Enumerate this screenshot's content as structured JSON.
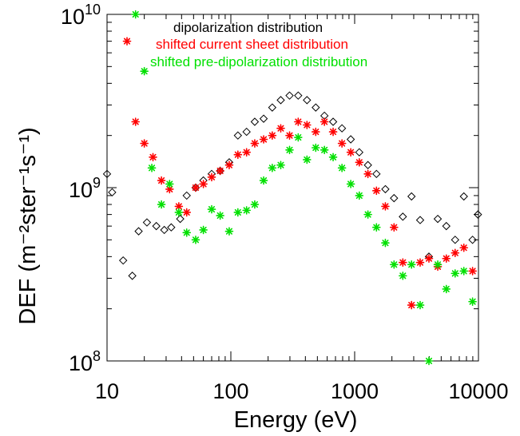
{
  "chart_data": {
    "type": "scatter",
    "title": "",
    "xlabel": "Energy (eV)",
    "ylabel": "DEF (m⁻²ster⁻¹s⁻¹)",
    "x_scale": "log",
    "y_scale": "log",
    "xlim": [
      10,
      10000
    ],
    "ylim": [
      100000000,
      10000000000
    ],
    "grid": false,
    "legend_position": "top-right",
    "x_tick_labels": [
      "10",
      "100",
      "1000",
      "10000"
    ],
    "y_tick_labels": [
      {
        "base": "10",
        "exp": "8",
        "value": 100000000
      },
      {
        "base": "10",
        "exp": "9",
        "value": 1000000000
      },
      {
        "base": "10",
        "exp": "10",
        "value": 10000000000
      }
    ],
    "series": [
      {
        "name": "dipolarization distribution",
        "color": "#000000",
        "marker": "diamond",
        "points": [
          [
            10,
            1200000000.0
          ],
          [
            11,
            940000000.0
          ],
          [
            13.5,
            380000000.0
          ],
          [
            16,
            310000000.0
          ],
          [
            18,
            560000000.0
          ],
          [
            21,
            630000000.0
          ],
          [
            25,
            600000000.0
          ],
          [
            29,
            570000000.0
          ],
          [
            33,
            590000000.0
          ],
          [
            39,
            660000000.0
          ],
          [
            44,
            900000000.0
          ],
          [
            52,
            1000000000.0
          ],
          [
            60,
            1100000000.0
          ],
          [
            70,
            1200000000.0
          ],
          [
            82,
            1250000000.0
          ],
          [
            97,
            1400000000.0
          ],
          [
            114,
            2000000000.0
          ],
          [
            134,
            2100000000.0
          ],
          [
            156,
            2400000000.0
          ],
          [
            184,
            2500000000.0
          ],
          [
            216,
            2900000000.0
          ],
          [
            253,
            3200000000.0
          ],
          [
            298,
            3400000000.0
          ],
          [
            350,
            3400000000.0
          ],
          [
            412,
            3200000000.0
          ],
          [
            485,
            2900000000.0
          ],
          [
            570,
            2600000000.0
          ],
          [
            670,
            2400000000.0
          ],
          [
            790,
            2200000000.0
          ],
          [
            930,
            1900000000.0
          ],
          [
            1090,
            1600000000.0
          ],
          [
            1280,
            1350000000.0
          ],
          [
            1500,
            1200000000.0
          ],
          [
            1770,
            980000000.0
          ],
          [
            2080,
            870000000.0
          ],
          [
            2450,
            680000000.0
          ],
          [
            2880,
            890000000.0
          ],
          [
            3380,
            650000000.0
          ],
          [
            3980,
            400000000.0
          ],
          [
            4690,
            660000000.0
          ],
          [
            5500,
            600000000.0
          ],
          [
            6480,
            500000000.0
          ],
          [
            7620,
            890000000.0
          ],
          [
            8960,
            500000000.0
          ],
          [
            9900,
            700000000.0
          ]
        ]
      },
      {
        "name": "shifted current sheet distribution",
        "color": "#ff0000",
        "marker": "asterisk",
        "points": [
          [
            14.5,
            7000000000.0
          ],
          [
            17,
            2400000000.0
          ],
          [
            20,
            1800000000.0
          ],
          [
            23.5,
            1500000000.0
          ],
          [
            27.5,
            1100000000.0
          ],
          [
            32,
            980000000.0
          ],
          [
            38,
            780000000.0
          ],
          [
            44,
            720000000.0
          ],
          [
            52,
            1000000000.0
          ],
          [
            60,
            1050000000.0
          ],
          [
            70,
            1150000000.0
          ],
          [
            82,
            1250000000.0
          ],
          [
            97,
            1350000000.0
          ],
          [
            114,
            1550000000.0
          ],
          [
            134,
            1600000000.0
          ],
          [
            156,
            1800000000.0
          ],
          [
            184,
            1900000000.0
          ],
          [
            216,
            2000000000.0
          ],
          [
            253,
            2200000000.0
          ],
          [
            298,
            2000000000.0
          ],
          [
            350,
            2400000000.0
          ],
          [
            412,
            2300000000.0
          ],
          [
            485,
            2100000000.0
          ],
          [
            570,
            2400000000.0
          ],
          [
            670,
            2100000000.0
          ],
          [
            790,
            1800000000.0
          ],
          [
            930,
            1600000000.0
          ],
          [
            1090,
            1400000000.0
          ],
          [
            1280,
            1200000000.0
          ],
          [
            1500,
            960000000.0
          ],
          [
            1770,
            780000000.0
          ],
          [
            2080,
            590000000.0
          ],
          [
            2450,
            370000000.0
          ],
          [
            2880,
            210000000.0
          ],
          [
            3380,
            370000000.0
          ],
          [
            3980,
            390000000.0
          ],
          [
            4690,
            350000000.0
          ],
          [
            5500,
            390000000.0
          ],
          [
            6480,
            420000000.0
          ],
          [
            7620,
            450000000.0
          ],
          [
            8960,
            330000000.0
          ]
        ]
      },
      {
        "name": "shifted pre-dipolarization distribution",
        "color": "#00e000",
        "marker": "asterisk",
        "points": [
          [
            17,
            10000000000.0
          ],
          [
            20,
            4700000000.0
          ],
          [
            23,
            1300000000.0
          ],
          [
            27.5,
            800000000.0
          ],
          [
            32,
            1050000000.0
          ],
          [
            38,
            720000000.0
          ],
          [
            44,
            550000000.0
          ],
          [
            52,
            500000000.0
          ],
          [
            60,
            570000000.0
          ],
          [
            70,
            750000000.0
          ],
          [
            82,
            690000000.0
          ],
          [
            97,
            560000000.0
          ],
          [
            114,
            720000000.0
          ],
          [
            134,
            740000000.0
          ],
          [
            156,
            800000000.0
          ],
          [
            184,
            1100000000.0
          ],
          [
            216,
            1300000000.0
          ],
          [
            253,
            1350000000.0
          ],
          [
            298,
            1650000000.0
          ],
          [
            350,
            1950000000.0
          ],
          [
            412,
            1450000000.0
          ],
          [
            485,
            1700000000.0
          ],
          [
            570,
            1650000000.0
          ],
          [
            670,
            1500000000.0
          ],
          [
            790,
            1300000000.0
          ],
          [
            930,
            1050000000.0
          ],
          [
            1090,
            900000000.0
          ],
          [
            1280,
            700000000.0
          ],
          [
            1500,
            590000000.0
          ],
          [
            1770,
            480000000.0
          ],
          [
            2080,
            360000000.0
          ],
          [
            2450,
            310000000.0
          ],
          [
            2880,
            360000000.0
          ],
          [
            3380,
            210000000.0
          ],
          [
            3980,
            100000000.0
          ],
          [
            4690,
            360000000.0
          ],
          [
            5500,
            260000000.0
          ],
          [
            6480,
            320000000.0
          ],
          [
            7620,
            330000000.0
          ],
          [
            8960,
            220000000.0
          ]
        ]
      }
    ]
  }
}
